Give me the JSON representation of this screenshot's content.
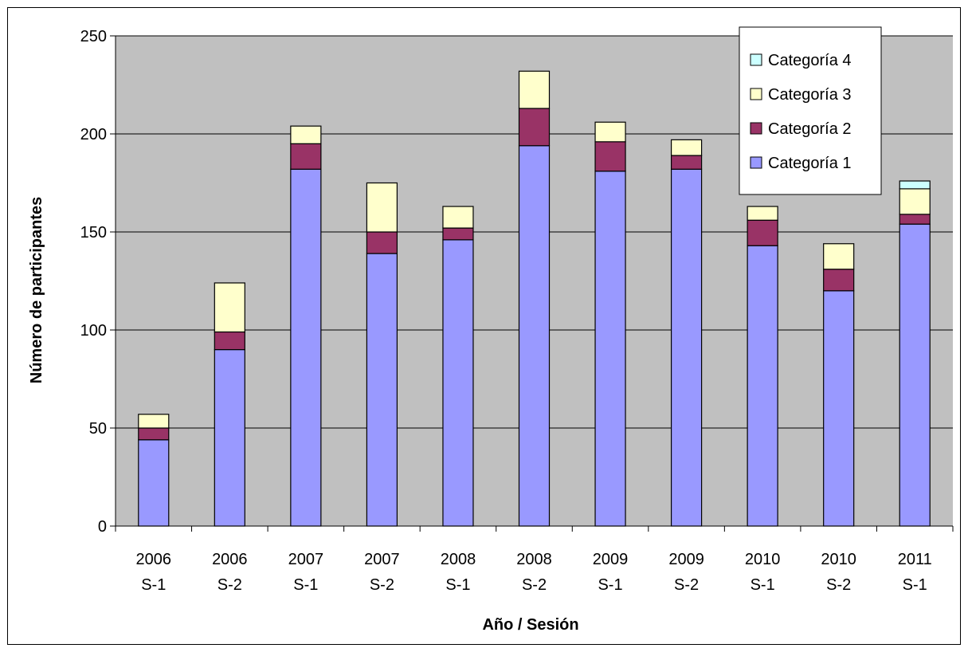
{
  "chart_data": {
    "type": "bar",
    "stacked": true,
    "title": "",
    "xlabel": "Año / Sesión",
    "ylabel": "Número de participantes",
    "ylim": [
      0,
      250
    ],
    "yticks": [
      0,
      50,
      100,
      150,
      200,
      250
    ],
    "categories": [
      [
        "2006",
        "S-1"
      ],
      [
        "2006",
        "S-2"
      ],
      [
        "2007",
        "S-1"
      ],
      [
        "2007",
        "S-2"
      ],
      [
        "2008",
        "S-1"
      ],
      [
        "2008",
        "S-2"
      ],
      [
        "2009",
        "S-1"
      ],
      [
        "2009",
        "S-2"
      ],
      [
        "2010",
        "S-1"
      ],
      [
        "2010",
        "S-2"
      ],
      [
        "2011",
        "S-1"
      ]
    ],
    "series": [
      {
        "name": "Categoría 1",
        "color": "#9999ff",
        "values": [
          44,
          90,
          182,
          139,
          146,
          194,
          181,
          182,
          143,
          120,
          154
        ]
      },
      {
        "name": "Categoría 2",
        "color": "#993366",
        "values": [
          6,
          9,
          13,
          11,
          6,
          19,
          15,
          7,
          13,
          11,
          5
        ]
      },
      {
        "name": "Categoría 3",
        "color": "#ffffcc",
        "values": [
          7,
          25,
          9,
          25,
          11,
          19,
          10,
          8,
          7,
          13,
          13
        ]
      },
      {
        "name": "Categoría 4",
        "color": "#ccffff",
        "values": [
          0,
          0,
          0,
          0,
          0,
          0,
          0,
          0,
          0,
          0,
          4
        ]
      }
    ],
    "legend_order": [
      3,
      2,
      1,
      0
    ],
    "legend_position": "top-right",
    "plot_background": "#c0c0c0",
    "grid": true
  }
}
